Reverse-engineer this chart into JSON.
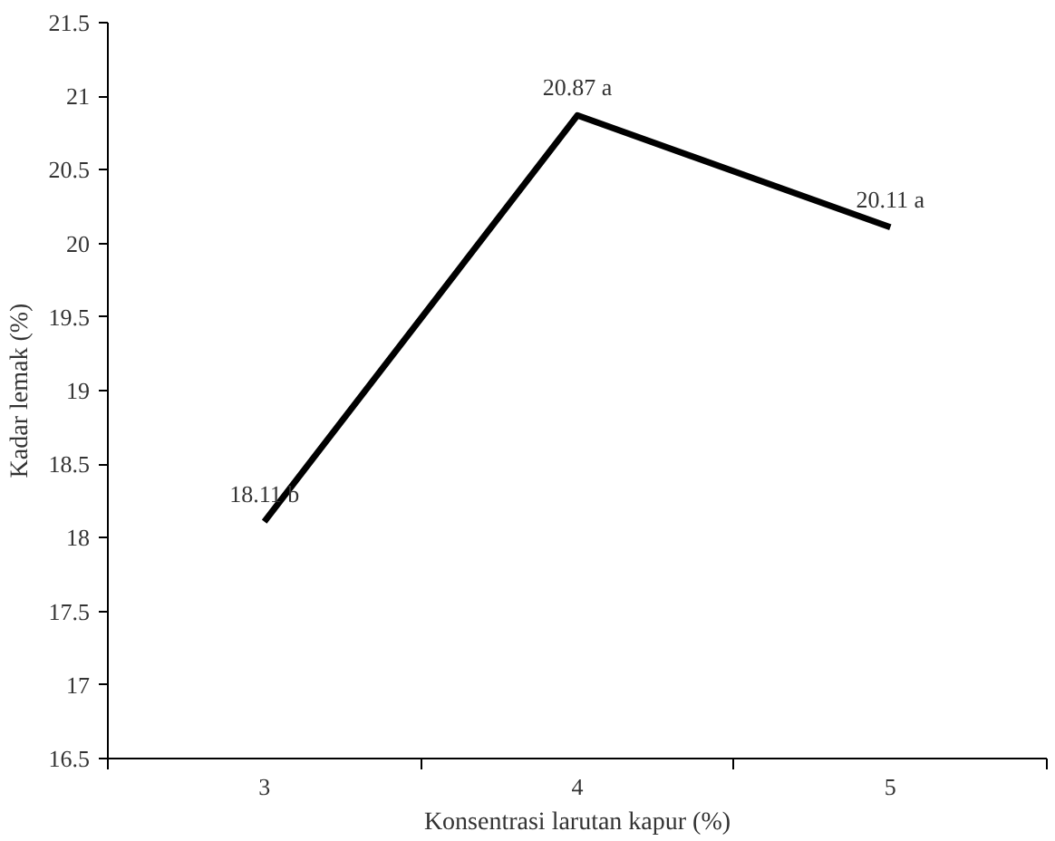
{
  "chart_data": {
    "type": "line",
    "xlabel": "Konsentrasi larutan kapur (%)",
    "ylabel": "Kadar lemak (%)",
    "categories": [
      "3",
      "4",
      "5"
    ],
    "series": [
      {
        "color": "#000000",
        "values": [
          18.11,
          20.87,
          20.11
        ],
        "value_labels": [
          "18.11 b",
          "20.87 a",
          "20.11 a"
        ]
      }
    ],
    "ylim": [
      16.5,
      21.5
    ],
    "yticks": [
      16.5,
      17,
      17.5,
      18,
      18.5,
      19,
      19.5,
      20,
      20.5,
      21,
      21.5
    ],
    "grid": false,
    "marker": "none",
    "line_style": "solid"
  }
}
